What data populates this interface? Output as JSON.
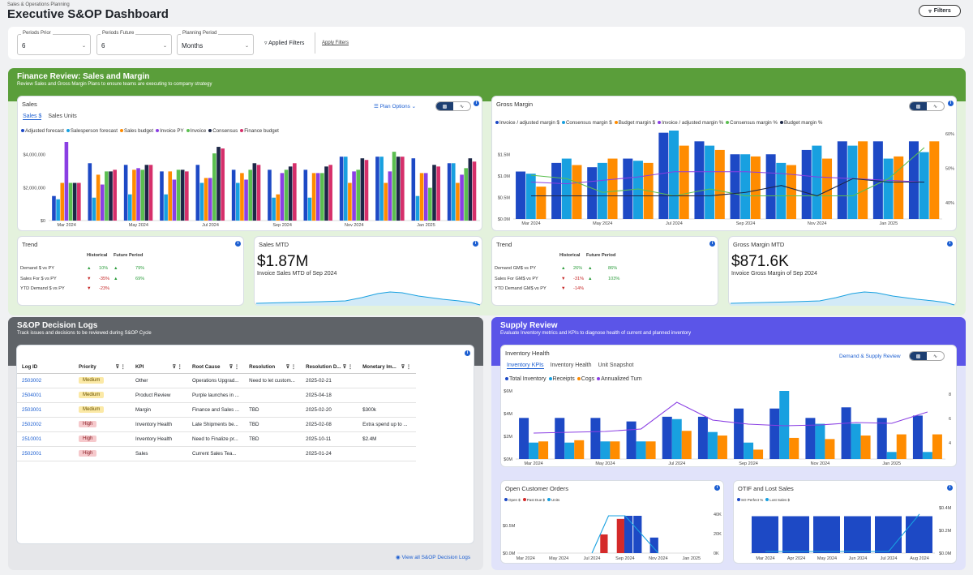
{
  "header": {
    "subtitle": "Sales & Operations Planning",
    "title": "Executive S&OP Dashboard",
    "filters_button": "Filters"
  },
  "filters": {
    "periods_prior": {
      "label": "Periods Prior",
      "value": "6"
    },
    "periods_future": {
      "label": "Periods Future",
      "value": "6"
    },
    "planning_period": {
      "label": "Planning Period",
      "value": "Months"
    },
    "applied_filters": "Applied Filters",
    "apply_filters": "Apply Filters"
  },
  "colors": {
    "finance": "#5a9e3a",
    "decision": "#5f6368",
    "supply": "#5b55e8",
    "s1": "#1d49c5",
    "s2": "#18a0e0",
    "s3": "#ff8c00",
    "s4": "#8a3fe3",
    "s5": "#5bbf50",
    "s6": "#1d2747",
    "s7": "#d6306b"
  },
  "finance": {
    "title": "Finance Review: Sales and Margin",
    "desc": "Review Sales and Gross Margin Plans to ensure teams are executing to company strategy"
  },
  "sales": {
    "title": "Sales",
    "tab_active": "Sales $",
    "tab_other": "Sales Units",
    "plan_options": "Plan Options",
    "legend": [
      "Adjusted forecast",
      "Salesperson forecast",
      "Sales budget",
      "Invoice PY",
      "Invoice",
      "Consensus",
      "Finance budget"
    ]
  },
  "gross_margin": {
    "title": "Gross Margin",
    "legend": [
      "Invoice / adjusted margin $",
      "Consensus margin $",
      "Budget margin $",
      "Invoice / adjusted margin %",
      "Consensus margin %",
      "Budget margin %"
    ]
  },
  "trend_sales": {
    "title": "Trend",
    "col_hist": "Historical",
    "col_future": "Future Period",
    "rows": [
      {
        "label": "Demand $ vs PY",
        "hist": "10%",
        "future": "79%"
      },
      {
        "label": "Sales For $ vs PY",
        "hist": "-35%",
        "future": "69%"
      },
      {
        "label": "YTD Demand $ vs PY",
        "hist": "-23%",
        "future": ""
      }
    ]
  },
  "sales_mtd": {
    "title": "Sales MTD",
    "value": "$1.87M",
    "sub": "Invoice Sales MTD of Sep 2024"
  },
  "trend_gm": {
    "title": "Trend",
    "col_hist": "Historical",
    "col_future": "Future Period",
    "rows": [
      {
        "label": "Demand GM$ vs PY",
        "hist": "26%",
        "future": "86%"
      },
      {
        "label": "Sales For GM$ vs PY",
        "hist": "-31%",
        "future": "103%"
      },
      {
        "label": "YTD Demand GM$ vs PY",
        "hist": "-14%",
        "future": ""
      }
    ]
  },
  "gm_mtd": {
    "title": "Gross Margin MTD",
    "value": "$871.6K",
    "sub": "Invoice Gross Margin of Sep 2024"
  },
  "decision": {
    "title": "S&OP Decision Logs",
    "desc": "Track issues and decisions to be reviewed during S&OP Cycle",
    "view_all": "View all S&OP Decision Logs",
    "columns": [
      "Log ID",
      "Priority",
      "KPI",
      "Root Cause",
      "Resolution",
      "Resolution D...",
      "Monetary Im..."
    ],
    "rows": [
      {
        "id": "2503002",
        "priority": "Medium",
        "kpi": "Other",
        "cause": "Operations Upgrad...",
        "resolution": "Need to let custom...",
        "date": "2025-02-21",
        "money": ""
      },
      {
        "id": "2504001",
        "priority": "Medium",
        "kpi": "Product Review",
        "cause": "Purple launches in ...",
        "resolution": "",
        "date": "2025-04-18",
        "money": ""
      },
      {
        "id": "2503001",
        "priority": "Medium",
        "kpi": "Margin",
        "cause": "Finance and Sales ...",
        "resolution": "TBD",
        "date": "2025-02-20",
        "money": "$300k"
      },
      {
        "id": "2502002",
        "priority": "High",
        "kpi": "Inventory Health",
        "cause": "Late Shipments be...",
        "resolution": "TBD",
        "date": "2025-02-08",
        "money": "Extra spend up to ..."
      },
      {
        "id": "2510001",
        "priority": "High",
        "kpi": "Inventory Health",
        "cause": "Need to Finalize pr...",
        "resolution": "TBD",
        "date": "2025-10-11",
        "money": "$2.4M"
      },
      {
        "id": "2502001",
        "priority": "High",
        "kpi": "Sales",
        "cause": "Current Sales Tea...",
        "resolution": "",
        "date": "2025-01-24",
        "money": ""
      }
    ]
  },
  "supply": {
    "title": "Supply Review",
    "desc": "Evaluate Inventory metrics and KPIs to diagnose health of current and planned inventory"
  },
  "inventory": {
    "title": "Inventory Health",
    "link": "Demand & Supply Review",
    "tabs": [
      "Inventory KPIs",
      "Inventory Health",
      "Unit Snapshot"
    ],
    "legend": [
      "Total Inventory",
      "Receipts",
      "Cogs",
      "Annualized Turn"
    ]
  },
  "orders": {
    "title": "Open Customer Orders",
    "legend": [
      "Open $",
      "Past Due $",
      "Units"
    ]
  },
  "otif": {
    "title": "OTIF and Lost Sales",
    "legend": [
      "SO Perfect %",
      "Lost Sales $"
    ]
  },
  "chart_data": [
    {
      "type": "bar",
      "title": "Sales",
      "x": [
        "Mar 2024",
        "Apr 2024",
        "May 2024",
        "Jun 2024",
        "Jul 2024",
        "Aug 2024",
        "Sep 2024",
        "Oct 2024",
        "Nov 2024",
        "Dec 2024",
        "Jan 2025",
        "Feb 2025"
      ],
      "xticks": [
        "Mar 2024",
        "May 2024",
        "Jul 2024",
        "Sep 2024",
        "Nov 2024",
        "Jan 2025"
      ],
      "yticks": [
        "$0",
        "$2,000,000",
        "$4,000,000"
      ],
      "ylim": [
        0,
        4800000
      ],
      "series": [
        {
          "name": "Adjusted forecast",
          "values": [
            1500000,
            3500000,
            3400000,
            3000000,
            3400000,
            3100000,
            3100000,
            3100000,
            3900000,
            3900000,
            3800000,
            3500000
          ]
        },
        {
          "name": "Salesperson forecast",
          "values": [
            1300000,
            1400000,
            1600000,
            1600000,
            2300000,
            2300000,
            1400000,
            1400000,
            3900000,
            3900000,
            1500000,
            3500000
          ]
        },
        {
          "name": "Sales budget",
          "values": [
            2300000,
            2800000,
            3100000,
            3000000,
            2600000,
            2900000,
            1600000,
            2900000,
            2300000,
            2300000,
            2900000,
            2300000
          ]
        },
        {
          "name": "Invoice PY",
          "values": [
            4800000,
            2200000,
            3200000,
            2500000,
            2600000,
            2500000,
            2900000,
            2900000,
            3000000,
            3000000,
            2900000,
            2800000
          ]
        },
        {
          "name": "Invoice",
          "values": [
            2300000,
            3000000,
            3100000,
            3100000,
            4100000,
            3100000,
            3100000,
            2900000,
            3100000,
            4200000,
            2000000,
            3200000
          ]
        },
        {
          "name": "Consensus",
          "values": [
            2300000,
            3000000,
            3400000,
            3100000,
            4500000,
            3500000,
            3300000,
            3300000,
            3800000,
            3900000,
            3400000,
            3800000
          ]
        },
        {
          "name": "Finance budget",
          "values": [
            2300000,
            3100000,
            3400000,
            3000000,
            4400000,
            3400000,
            3500000,
            3400000,
            3700000,
            3900000,
            3300000,
            3600000
          ]
        }
      ]
    },
    {
      "type": "bar",
      "title": "Gross Margin",
      "x": [
        "Mar 2024",
        "Apr 2024",
        "May 2024",
        "Jun 2024",
        "Jul 2024",
        "Aug 2024",
        "Sep 2024",
        "Oct 2024",
        "Nov 2024",
        "Dec 2024",
        "Jan 2025",
        "Feb 2025"
      ],
      "xticks": [
        "Mar 2024",
        "May 2024",
        "Jul 2024",
        "Sep 2024",
        "Nov 2024",
        "Jan 2025"
      ],
      "yticks": [
        "$0.0M",
        "$0.5M",
        "$1.0M",
        "$1.5M"
      ],
      "y2ticks": [
        "40%",
        "50%",
        "60%"
      ],
      "series": [
        {
          "name": "Invoice / adjusted margin $",
          "values": [
            1100000,
            1300000,
            1200000,
            1400000,
            2000000,
            1800000,
            1500000,
            1500000,
            1600000,
            1800000,
            1800000,
            1800000
          ]
        },
        {
          "name": "Consensus margin $",
          "values": [
            1050000,
            1400000,
            1300000,
            1350000,
            2050000,
            1700000,
            1500000,
            1300000,
            1700000,
            1700000,
            1400000,
            1550000
          ]
        },
        {
          "name": "Budget margin $",
          "values": [
            750000,
            1250000,
            1400000,
            1300000,
            1700000,
            1600000,
            1450000,
            1250000,
            1400000,
            1800000,
            1450000,
            1800000
          ]
        },
        {
          "name": "Invoice / adjusted margin %",
          "values": [
            46,
            45.5,
            46.5,
            47.5,
            49,
            49,
            49,
            48.5,
            47.5,
            47,
            46.5,
            46
          ]
        },
        {
          "name": "Consensus margin %",
          "values": [
            48,
            47,
            43,
            44,
            42,
            44,
            42,
            42,
            42,
            42,
            47,
            56
          ]
        },
        {
          "name": "Budget margin %",
          "values": [
            42,
            42,
            42,
            42,
            42,
            42,
            43,
            45,
            42,
            47,
            46,
            46
          ]
        }
      ]
    },
    {
      "type": "bar",
      "title": "Inventory Health",
      "x": [
        "Mar 2024",
        "Apr 2024",
        "May 2024",
        "Jun 2024",
        "Jul 2024",
        "Aug 2024",
        "Sep 2024",
        "Oct 2024",
        "Nov 2024",
        "Dec 2024",
        "Jan 2025",
        "Feb 2025"
      ],
      "xticks": [
        "Mar 2024",
        "May 2024",
        "Jul 2024",
        "Sep 2024",
        "Nov 2024",
        "Jan 2025"
      ],
      "yticks": [
        "$0M",
        "$2M",
        "$4M",
        "$6M"
      ],
      "y2ticks": [
        "4",
        "6",
        "8"
      ],
      "series": [
        {
          "name": "Total Inventory",
          "values": [
            3500000,
            3500000,
            3500000,
            3200000,
            3600000,
            3600000,
            4300000,
            4300000,
            3500000,
            4400000,
            3500000,
            3700000
          ]
        },
        {
          "name": "Receipts",
          "values": [
            1400000,
            1400000,
            1500000,
            1500000,
            3400000,
            2300000,
            1400000,
            5800000,
            3000000,
            3000000,
            600000,
            600000
          ]
        },
        {
          "name": "Cogs",
          "values": [
            1500000,
            1600000,
            1500000,
            1500000,
            2400000,
            2000000,
            800000,
            1800000,
            1700000,
            2000000,
            2100000,
            2100000
          ]
        },
        {
          "name": "Annualized Turn",
          "values": [
            4.2,
            4.3,
            4.4,
            4.7,
            8,
            5.8,
            5.3,
            5.1,
            5.2,
            5.5,
            5.4,
            6.8
          ]
        }
      ]
    },
    {
      "type": "bar",
      "title": "Open Customer Orders",
      "x": [
        "Jul 2024",
        "Aug 2024",
        "Sep 2024",
        "Oct 2024",
        "Nov 2024"
      ],
      "xticks": [
        "Mar 2024",
        "May 2024",
        "Jul 2024",
        "Sep 2024",
        "Nov 2024",
        "Jan 2025"
      ],
      "yticks": [
        "$0.0M",
        "$0.5M"
      ],
      "y2ticks": [
        "0K",
        "20K",
        "40K"
      ],
      "series": [
        {
          "name": "Open $",
          "values": [
            0,
            0,
            600000,
            600000,
            250000
          ]
        },
        {
          "name": "Past Due $",
          "values": [
            0,
            300000,
            550000,
            0,
            0
          ]
        },
        {
          "name": "Units",
          "values": [
            0,
            40000,
            40000,
            20000,
            0
          ]
        }
      ]
    },
    {
      "type": "bar",
      "title": "OTIF and Lost Sales",
      "x": [
        "Mar 2024",
        "Apr 2024",
        "May 2024",
        "Jun 2024",
        "Jul 2024",
        "Aug 2024"
      ],
      "xticks": [
        "Mar 2024",
        "Apr 2024",
        "May 2024",
        "Jun 2024",
        "Jul 2024",
        "Aug 2024"
      ],
      "yticks": [
        "$0.0M",
        "$0.2M",
        "$0.4M"
      ],
      "series": [
        {
          "name": "SO Perfect %",
          "values": [
            91,
            91,
            91,
            91,
            91,
            91
          ]
        },
        {
          "name": "Lost Sales $",
          "values": [
            0,
            0,
            0,
            0,
            0,
            0.33
          ]
        }
      ]
    }
  ]
}
